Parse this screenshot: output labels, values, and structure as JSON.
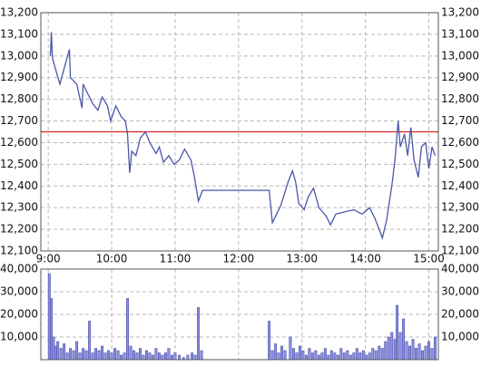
{
  "chart_data": [
    {
      "type": "line",
      "xlim": [
        533,
        909
      ],
      "xticks": [
        {
          "value": 540,
          "label": "9:00"
        },
        {
          "value": 600,
          "label": "10:00"
        },
        {
          "value": 660,
          "label": "11:00"
        },
        {
          "value": 720,
          "label": "12:00"
        },
        {
          "value": 780,
          "label": "13:00"
        },
        {
          "value": 840,
          "label": "14:00"
        },
        {
          "value": 900,
          "label": "15:00"
        }
      ],
      "ylim": [
        12100,
        13200
      ],
      "yticks": [
        {
          "value": 12100,
          "label": "12,100"
        },
        {
          "value": 12200,
          "label": "12,200"
        },
        {
          "value": 12300,
          "label": "12,300"
        },
        {
          "value": 12400,
          "label": "12,400"
        },
        {
          "value": 12500,
          "label": "12,500"
        },
        {
          "value": 12600,
          "label": "12,600"
        },
        {
          "value": 12700,
          "label": "12,700"
        },
        {
          "value": 12800,
          "label": "12,800"
        },
        {
          "value": 12900,
          "label": "12,900"
        },
        {
          "value": 13000,
          "label": "13,000"
        },
        {
          "value": 13100,
          "label": "13,100"
        },
        {
          "value": 13200,
          "label": "13,200"
        }
      ],
      "grid": true,
      "reference_line": {
        "value": 12650,
        "color": "#e02020"
      },
      "series": [
        {
          "color": "#4a56a8",
          "x": [
            542,
            543,
            544,
            548,
            551,
            556,
            560,
            561,
            567,
            572,
            573,
            578,
            582,
            587,
            591,
            596,
            599,
            604,
            609,
            613,
            615,
            617,
            619,
            623,
            627,
            632,
            636,
            642,
            645,
            649,
            654,
            659,
            664,
            669,
            675,
            678,
            682,
            686,
            749,
            752,
            760,
            767,
            771,
            774,
            777,
            782,
            786,
            791,
            796,
            803,
            807,
            812,
            820,
            829,
            837,
            844,
            849,
            853,
            856,
            860,
            865,
            868,
            871,
            873,
            877,
            880,
            883,
            886,
            890,
            893,
            897,
            900,
            903,
            906
          ],
          "values": [
            13000,
            13110,
            12990,
            12920,
            12870,
            12960,
            13030,
            12900,
            12870,
            12760,
            12870,
            12820,
            12780,
            12750,
            12810,
            12770,
            12700,
            12770,
            12720,
            12700,
            12640,
            12460,
            12560,
            12540,
            12620,
            12650,
            12600,
            12550,
            12580,
            12510,
            12540,
            12500,
            12520,
            12570,
            12520,
            12450,
            12330,
            12380,
            12380,
            12230,
            12310,
            12420,
            12470,
            12420,
            12320,
            12290,
            12350,
            12390,
            12300,
            12260,
            12220,
            12270,
            12280,
            12290,
            12270,
            12300,
            12250,
            12200,
            12160,
            12240,
            12400,
            12520,
            12700,
            12580,
            12640,
            12540,
            12670,
            12520,
            12440,
            12580,
            12600,
            12480,
            12580,
            12540
          ]
        }
      ]
    },
    {
      "type": "bar",
      "xlim": [
        533,
        909
      ],
      "ylim": [
        0,
        40000
      ],
      "yticks": [
        {
          "value": 10000,
          "label": "10,000"
        },
        {
          "value": 20000,
          "label": "20,000"
        },
        {
          "value": 30000,
          "label": "30,000"
        },
        {
          "value": 40000,
          "label": "40,000"
        }
      ],
      "grid": true,
      "series": [
        {
          "color": "#8c90e4",
          "x": [
            541,
            543,
            545,
            547,
            549,
            552,
            555,
            558,
            561,
            564,
            567,
            570,
            573,
            576,
            579,
            582,
            585,
            588,
            591,
            594,
            597,
            600,
            603,
            606,
            609,
            612,
            615,
            618,
            621,
            624,
            627,
            630,
            633,
            636,
            639,
            642,
            645,
            648,
            651,
            654,
            657,
            660,
            664,
            668,
            672,
            676,
            679,
            682,
            685,
            749,
            752,
            755,
            758,
            761,
            764,
            769,
            772,
            775,
            778,
            781,
            784,
            787,
            790,
            793,
            796,
            799,
            802,
            805,
            808,
            811,
            814,
            817,
            820,
            823,
            826,
            829,
            832,
            835,
            838,
            841,
            844,
            847,
            850,
            853,
            856,
            859,
            862,
            865,
            868,
            870,
            873,
            876,
            879,
            882,
            885,
            888,
            891,
            894,
            897,
            900,
            903,
            906
          ],
          "values": [
            38000,
            27000,
            10000,
            6000,
            8000,
            5000,
            7000,
            3000,
            5000,
            4000,
            8000,
            3000,
            5000,
            4000,
            17000,
            3000,
            5000,
            4000,
            6000,
            3000,
            4000,
            3000,
            5000,
            4000,
            2000,
            3000,
            27000,
            6000,
            4000,
            3000,
            5000,
            2000,
            4000,
            3000,
            2000,
            5000,
            3000,
            2000,
            3000,
            5000,
            2000,
            3000,
            2000,
            1000,
            2000,
            3000,
            2000,
            23000,
            4000,
            17000,
            4000,
            7000,
            3000,
            6000,
            4000,
            10000,
            5000,
            3000,
            6000,
            4000,
            2000,
            5000,
            3000,
            4000,
            2000,
            3000,
            5000,
            2000,
            4000,
            3000,
            2000,
            5000,
            3000,
            4000,
            2000,
            3000,
            5000,
            3000,
            4000,
            2000,
            3000,
            5000,
            4000,
            6000,
            5000,
            8000,
            10000,
            12000,
            9000,
            24000,
            12000,
            18000,
            8000,
            6000,
            9000,
            5000,
            7000,
            4000,
            6000,
            8000,
            5000,
            10000
          ]
        }
      ]
    }
  ]
}
